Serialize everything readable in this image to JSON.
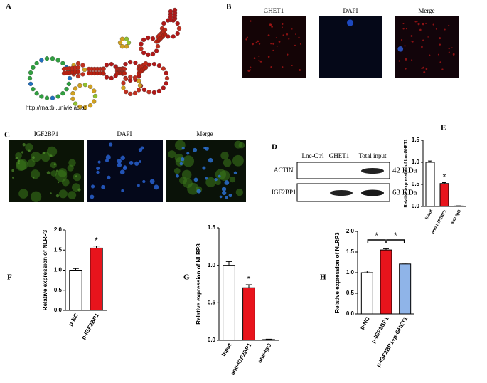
{
  "panel_letters": [
    "A",
    "B",
    "C",
    "D",
    "E",
    "F",
    "G",
    "H"
  ],
  "rna": {
    "url": "http://rna.tbi.univie.ac.at"
  },
  "fluorescence_b": [
    "GHET1",
    "DAPI",
    "Merge"
  ],
  "fluorescence_c": [
    "IGF2BP1",
    "DAPI",
    "Merge"
  ],
  "western_blot": {
    "lanes": [
      "Lnc-Ctrl",
      "GHET1",
      "Total input"
    ],
    "rows": [
      {
        "label": "ACTIN",
        "size": "42 KDa"
      },
      {
        "label": "IGF2BP1",
        "size": "63 KDa"
      }
    ]
  },
  "chart_data": [
    {
      "type": "bar",
      "ylabel": "Relative expression of LncGHET1",
      "categories": [
        "Input",
        "anti-IGF2BP1",
        "anti-IgG"
      ],
      "values": [
        1.0,
        0.52,
        0.01
      ],
      "errors": [
        0.03,
        0.02,
        0.005
      ],
      "colors": [
        "#ffffff",
        "#e8141c",
        "#ffffff"
      ],
      "annotations": [
        null,
        "*",
        null
      ],
      "ylim": [
        0,
        1.5
      ],
      "yticks": [
        {
          "value": 0,
          "label": "0.0"
        },
        0.5,
        {
          "value": 1,
          "label": "1.0"
        },
        1.5
      ]
    },
    {
      "type": "bar",
      "ylabel": "Relative expression of NLRP3",
      "categories": [
        "p-NC",
        "p-IGF2BP1"
      ],
      "values": [
        1.0,
        1.55
      ],
      "errors": [
        0.04,
        0.05
      ],
      "colors": [
        "#ffffff",
        "#e8141c"
      ],
      "annotations": [
        null,
        "*"
      ],
      "ylim": [
        0,
        2
      ],
      "yticks": [
        {
          "value": 0,
          "label": "0.0"
        },
        0.5,
        {
          "value": 1,
          "label": "1.0"
        },
        1.5,
        {
          "value": 2,
          "label": "2.0"
        }
      ]
    },
    {
      "type": "bar",
      "ylabel": "Relative expression of NLRP3",
      "categories": [
        "Input",
        "anti-IGF2BP1",
        "anti-IgG"
      ],
      "values": [
        1.0,
        0.7,
        0.01
      ],
      "errors": [
        0.05,
        0.04,
        0.005
      ],
      "colors": [
        "#ffffff",
        "#e8141c",
        "#ffffff"
      ],
      "annotations": [
        null,
        "*",
        null
      ],
      "ylim": [
        0,
        1.5
      ],
      "yticks": [
        {
          "value": 0,
          "label": "0.0"
        },
        0.5,
        {
          "value": 1,
          "label": "1.0"
        },
        1.5
      ]
    },
    {
      "type": "bar",
      "ylabel": "Relative expression of NLRP3",
      "categories": [
        "p-NC",
        "p-IGF2BP1",
        "p-IGF2BP1+p-GHET1"
      ],
      "values": [
        1.0,
        1.55,
        1.21
      ],
      "errors": [
        0.04,
        0.03,
        0.02
      ],
      "colors": [
        "#ffffff",
        "#e8141c",
        "#8fb4e8"
      ],
      "comparisons": [
        {
          "from": "p-NC",
          "to": "p-IGF2BP1",
          "label": "*"
        },
        {
          "from": "p-IGF2BP1",
          "to": "p-IGF2BP1+p-GHET1",
          "label": "*"
        }
      ],
      "ylim": [
        0,
        2
      ],
      "yticks": [
        {
          "value": 0,
          "label": "0.0"
        },
        0.5,
        {
          "value": 1,
          "label": "1.0"
        },
        1.5,
        {
          "value": 2,
          "label": "2.0"
        }
      ]
    }
  ]
}
